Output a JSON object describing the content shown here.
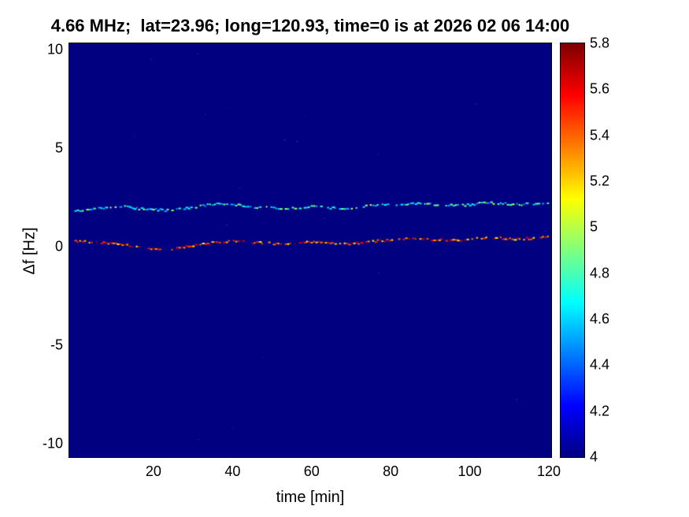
{
  "chart_data": {
    "type": "heatmap",
    "title": "4.66 MHz;  lat=23.96; long=120.93, time=0 is at 2026 02 06 14:00",
    "xlabel": "time [min]",
    "ylabel": "Δf [Hz]",
    "xlim": [
      -1.3,
      120.6
    ],
    "ylim": [
      -10.7,
      10.3
    ],
    "xticks": [
      20,
      40,
      60,
      80,
      100,
      120
    ],
    "yticks": [
      10,
      5,
      0,
      -5,
      -10
    ],
    "grid": false,
    "colormap": "jet",
    "background_value": 4,
    "colorbar": {
      "min": 4,
      "max": 5.8,
      "position": "right",
      "tick_labels": [
        "4",
        "4.2",
        "4.4",
        "4.6",
        "4.8",
        "5",
        "5.2",
        "5.4",
        "5.6",
        "5.8"
      ]
    },
    "traces": [
      {
        "name": "upper-doppler-trace",
        "description": "wavy dotted spectral trace near Δf ≈ 2 Hz, cyan-green intensities ≈ 4.5–5.0",
        "t": [
          0,
          4,
          8,
          12,
          16,
          20,
          24,
          28,
          32,
          36,
          40,
          44,
          48,
          52,
          56,
          60,
          64,
          68,
          72,
          76,
          80,
          84,
          88,
          92,
          96,
          100,
          104,
          108,
          112,
          116,
          120
        ],
        "df": [
          1.85,
          1.9,
          2.0,
          2.05,
          1.95,
          1.9,
          1.85,
          1.95,
          2.1,
          2.2,
          2.15,
          2.05,
          2.0,
          1.95,
          2.0,
          2.05,
          2.0,
          1.95,
          2.05,
          2.1,
          2.15,
          2.2,
          2.2,
          2.15,
          2.1,
          2.15,
          2.25,
          2.2,
          2.15,
          2.2,
          2.25
        ],
        "intensities": [
          4.6,
          4.7,
          4.55,
          4.9,
          4.65,
          5.0,
          4.6,
          4.5,
          4.8,
          4.95,
          4.55,
          4.7
        ]
      },
      {
        "name": "lower-doppler-trace",
        "description": "wavy dotted spectral trace near Δf ≈ 0.2 Hz, orange-red intensities ≈ 5.1–5.75",
        "t": [
          0,
          4,
          8,
          12,
          16,
          20,
          24,
          28,
          32,
          36,
          40,
          44,
          48,
          52,
          56,
          60,
          64,
          68,
          72,
          76,
          80,
          84,
          88,
          92,
          96,
          100,
          104,
          108,
          112,
          116,
          120
        ],
        "df": [
          0.3,
          0.25,
          0.2,
          0.1,
          0.0,
          -0.1,
          -0.15,
          0.0,
          0.15,
          0.25,
          0.3,
          0.25,
          0.2,
          0.15,
          0.2,
          0.25,
          0.2,
          0.15,
          0.2,
          0.3,
          0.35,
          0.4,
          0.4,
          0.35,
          0.35,
          0.4,
          0.45,
          0.45,
          0.4,
          0.45,
          0.5
        ],
        "intensities": [
          5.4,
          5.5,
          5.2,
          5.6,
          5.3,
          5.45,
          5.15,
          5.55,
          5.35,
          5.75,
          5.25,
          5.6
        ]
      }
    ]
  }
}
